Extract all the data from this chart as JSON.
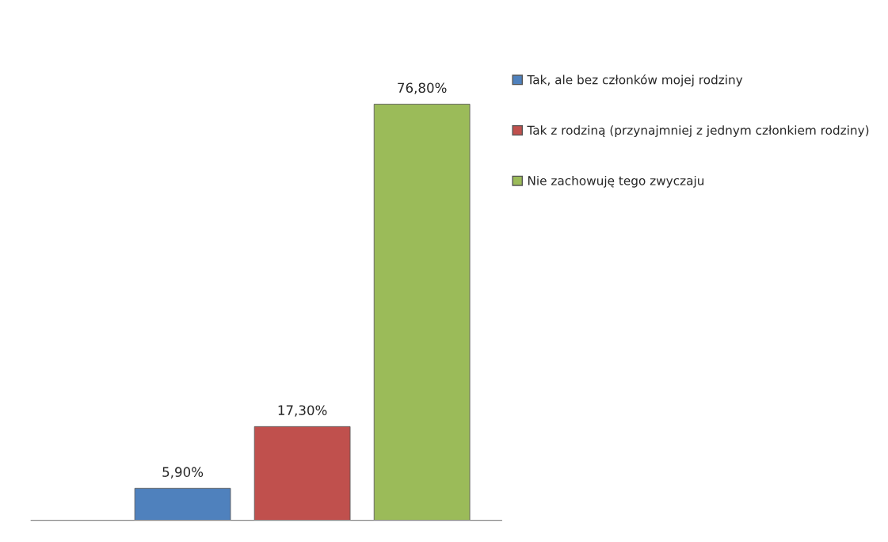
{
  "chart_data": {
    "type": "bar",
    "categories": [
      null
    ],
    "series": [
      {
        "name": "Tak, ale bez członków mojej rodziny",
        "color": "#4f81bd",
        "values": [
          5.9
        ],
        "value_labels": [
          "5,90%"
        ]
      },
      {
        "name": "Tak z rodziną (przynajmniej z jednym członkiem rodziny)",
        "color": "#c0504d",
        "values": [
          17.3
        ],
        "value_labels": [
          "17,30%"
        ]
      },
      {
        "name": "Nie zachowuję tego zwyczaju",
        "color": "#9bbb59",
        "values": [
          76.8
        ],
        "value_labels": [
          "76,80%"
        ]
      }
    ],
    "legend": "right",
    "grid": false
  }
}
